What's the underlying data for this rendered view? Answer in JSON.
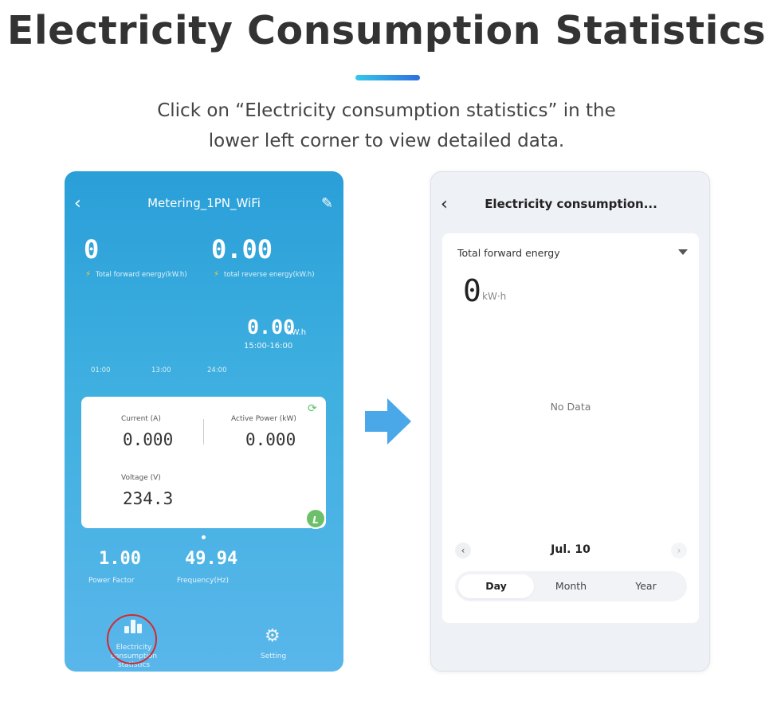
{
  "header": {
    "title": "Electricity Consumption Statistics",
    "subtitle_line1": "Click on “Electricity consumption statistics” in the",
    "subtitle_line2": "lower left corner to view detailed data."
  },
  "left_phone": {
    "back_icon": "chevron-left-icon",
    "title": "Metering_1PN_WiFi",
    "edit_icon": "pencil-icon",
    "total_forward_energy": {
      "value": "0",
      "label": "Total forward energy(kW.h)"
    },
    "total_reverse_energy": {
      "value": "0.00",
      "label": "total reverse energy(kW.h)"
    },
    "current_energy": {
      "value": "0.00",
      "unit": "kW.h",
      "time_range": "15:00-16:00"
    },
    "time_ticks": [
      "01:00",
      "13:00",
      "24:00"
    ],
    "card": {
      "current": {
        "label": "Current (A)",
        "value": "0.000"
      },
      "active_power": {
        "label": "Active Power (kW)",
        "value": "0.000"
      },
      "voltage": {
        "label": "Voltage (V)",
        "value": "234.3"
      },
      "badge": "L"
    },
    "power_factor": {
      "value": "1.00",
      "label": "Power Factor"
    },
    "frequency": {
      "value": "49.94",
      "label": "Frequency(Hz)"
    },
    "nav": {
      "stats_line1": "Electricity",
      "stats_line2": "consumption",
      "stats_line3": "statistics",
      "setting": "Setting"
    }
  },
  "right_phone": {
    "back_icon": "chevron-left-icon",
    "title": "Electricity consumption...",
    "dropdown_label": "Total forward energy",
    "value": "0",
    "unit": "kW·h",
    "no_data": "No Data",
    "date": "Jul. 10",
    "tabs": [
      {
        "label": "Day",
        "active": true
      },
      {
        "label": "Month",
        "active": false
      },
      {
        "label": "Year",
        "active": false
      }
    ]
  },
  "colors": {
    "accent_start": "#35c8ea",
    "accent_end": "#2e6fe0",
    "phone_blue": "#3fb0e0",
    "arrow_blue": "#4aa8e8",
    "highlight_red": "#d6282e"
  }
}
